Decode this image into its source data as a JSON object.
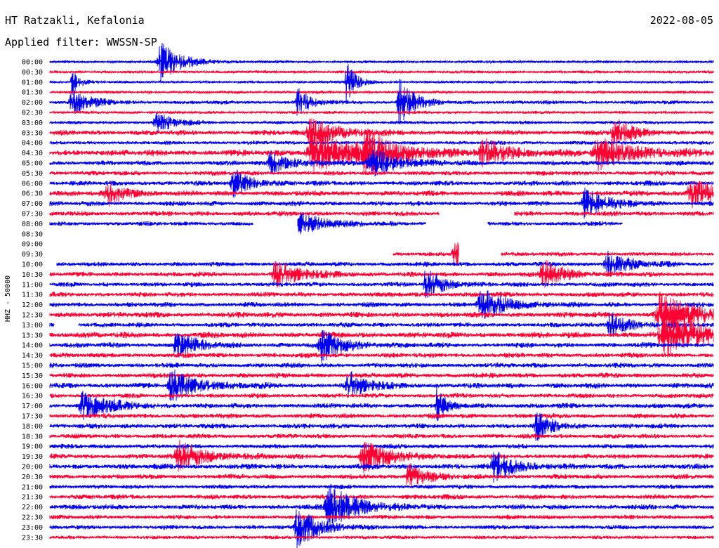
{
  "header": {
    "station": "HT Ratzakli, Kefalonia",
    "date": "2022-08-05",
    "filter": "Applied filter: WWSSN-SP"
  },
  "colors": {
    "even": "#0000ee",
    "odd": "#ff0033"
  },
  "chart_data": {
    "type": "line",
    "subtype": "helicorder",
    "ylabel": "HHZ - 50000",
    "row_labels": [
      "00:00",
      "00:30",
      "01:00",
      "01:30",
      "02:00",
      "02:30",
      "03:00",
      "03:30",
      "04:00",
      "04:30",
      "05:00",
      "05:30",
      "06:00",
      "06:30",
      "07:00",
      "07:30",
      "08:00",
      "08:30",
      "09:00",
      "09:30",
      "10:00",
      "10:30",
      "11:00",
      "11:30",
      "12:00",
      "12:30",
      "13:00",
      "13:30",
      "14:00",
      "14:30",
      "15:00",
      "15:30",
      "16:00",
      "16:30",
      "17:00",
      "17:30",
      "18:00",
      "18:30",
      "19:00",
      "19:30",
      "20:00",
      "20:30",
      "21:00",
      "21:30",
      "22:00",
      "22:30",
      "23:00",
      "23:30"
    ],
    "row_colors": [
      "blue",
      "red",
      "blue",
      "red",
      "blue",
      "red",
      "blue",
      "red",
      "blue",
      "red",
      "blue",
      "red",
      "blue",
      "red",
      "blue",
      "red",
      "blue",
      "red",
      "blue",
      "red",
      "blue",
      "red",
      "blue",
      "red",
      "blue",
      "red",
      "blue",
      "red",
      "blue",
      "red",
      "blue",
      "red",
      "blue",
      "red",
      "blue",
      "red",
      "blue",
      "red",
      "blue",
      "red",
      "blue",
      "red",
      "blue",
      "red",
      "blue",
      "red",
      "blue",
      "red"
    ],
    "row_activity": [
      0.15,
      0.15,
      0.12,
      0.15,
      0.35,
      0.15,
      0.25,
      0.6,
      0.35,
      0.85,
      0.55,
      0.5,
      0.55,
      0.65,
      0.55,
      0.55,
      0.45,
      0.1,
      0.1,
      0.4,
      0.5,
      0.55,
      0.5,
      0.55,
      0.55,
      0.7,
      0.5,
      0.75,
      0.6,
      0.55,
      0.55,
      0.6,
      0.65,
      0.5,
      0.6,
      0.55,
      0.55,
      0.5,
      0.5,
      0.6,
      0.65,
      0.55,
      0.45,
      0.55,
      0.6,
      0.45,
      0.45,
      0.3
    ],
    "gaps": [
      {
        "row": 15,
        "from_min": 17.6,
        "to_min": 21.0
      },
      {
        "row": 16,
        "from_min": 9.2,
        "to_min": 11.2
      },
      {
        "row": 16,
        "from_min": 17.0,
        "to_min": 19.8
      },
      {
        "row": 16,
        "from_min": 25.9,
        "to_min": 30
      },
      {
        "row": 17,
        "from_min": 0,
        "to_min": 30
      },
      {
        "row": 18,
        "from_min": 0,
        "to_min": 30
      },
      {
        "row": 19,
        "from_min": 0,
        "to_min": 15.5
      },
      {
        "row": 19,
        "from_min": 18.5,
        "to_min": 20.4
      },
      {
        "row": 20,
        "from_min": 0,
        "to_min": 0.3
      },
      {
        "row": 26,
        "from_min": 0.2,
        "to_min": 1.3
      }
    ],
    "events": [
      {
        "row": 0,
        "min": 5.0,
        "amp": 28,
        "dur": 1.2
      },
      {
        "row": 2,
        "min": 13.4,
        "amp": 34,
        "dur": 0.5
      },
      {
        "row": 2,
        "min": 1.0,
        "amp": 22,
        "dur": 0.4
      },
      {
        "row": 4,
        "min": 1.0,
        "amp": 18,
        "dur": 1.0
      },
      {
        "row": 4,
        "min": 11.2,
        "amp": 20,
        "dur": 0.7
      },
      {
        "row": 4,
        "min": 15.8,
        "amp": 35,
        "dur": 0.8
      },
      {
        "row": 6,
        "min": 4.8,
        "amp": 18,
        "dur": 0.9
      },
      {
        "row": 7,
        "min": 11.8,
        "amp": 22,
        "dur": 1.5
      },
      {
        "row": 7,
        "min": 25.5,
        "amp": 22,
        "dur": 1.0
      },
      {
        "row": 9,
        "min": 12.0,
        "amp": 26,
        "dur": 3.0
      },
      {
        "row": 9,
        "min": 14.3,
        "amp": 22,
        "dur": 1.5
      },
      {
        "row": 9,
        "min": 19.6,
        "amp": 18,
        "dur": 1.5
      },
      {
        "row": 9,
        "min": 24.8,
        "amp": 22,
        "dur": 2.0
      },
      {
        "row": 10,
        "min": 14.5,
        "amp": 22,
        "dur": 1.5
      },
      {
        "row": 10,
        "min": 10.0,
        "amp": 16,
        "dur": 1.2
      },
      {
        "row": 12,
        "min": 8.3,
        "amp": 20,
        "dur": 1.0
      },
      {
        "row": 13,
        "min": 2.6,
        "amp": 18,
        "dur": 1.0
      },
      {
        "row": 13,
        "min": 29.0,
        "amp": 22,
        "dur": 1.5
      },
      {
        "row": 14,
        "min": 24.2,
        "amp": 22,
        "dur": 1.2
      },
      {
        "row": 16,
        "min": 11.3,
        "amp": 16,
        "dur": 1.5
      },
      {
        "row": 19,
        "min": 18.3,
        "amp": 22,
        "dur": 1.0
      },
      {
        "row": 20,
        "min": 25.2,
        "amp": 18,
        "dur": 1.2
      },
      {
        "row": 21,
        "min": 10.2,
        "amp": 18,
        "dur": 1.5
      },
      {
        "row": 21,
        "min": 22.3,
        "amp": 22,
        "dur": 1.2
      },
      {
        "row": 22,
        "min": 17.0,
        "amp": 22,
        "dur": 1.0
      },
      {
        "row": 24,
        "min": 19.5,
        "amp": 22,
        "dur": 1.5
      },
      {
        "row": 25,
        "min": 27.6,
        "amp": 30,
        "dur": 2.0
      },
      {
        "row": 26,
        "min": 25.3,
        "amp": 20,
        "dur": 1.0
      },
      {
        "row": 27,
        "min": 27.8,
        "amp": 30,
        "dur": 2.5
      },
      {
        "row": 28,
        "min": 5.7,
        "amp": 22,
        "dur": 1.0
      },
      {
        "row": 28,
        "min": 12.3,
        "amp": 22,
        "dur": 1.2
      },
      {
        "row": 32,
        "min": 5.5,
        "amp": 22,
        "dur": 1.5
      },
      {
        "row": 32,
        "min": 13.5,
        "amp": 20,
        "dur": 1.0
      },
      {
        "row": 34,
        "min": 17.5,
        "amp": 26,
        "dur": 0.5
      },
      {
        "row": 34,
        "min": 1.5,
        "amp": 20,
        "dur": 1.5
      },
      {
        "row": 36,
        "min": 22.0,
        "amp": 24,
        "dur": 0.8
      },
      {
        "row": 39,
        "min": 5.8,
        "amp": 22,
        "dur": 1.5
      },
      {
        "row": 39,
        "min": 14.2,
        "amp": 22,
        "dur": 1.5
      },
      {
        "row": 40,
        "min": 20.1,
        "amp": 22,
        "dur": 1.2
      },
      {
        "row": 41,
        "min": 16.2,
        "amp": 20,
        "dur": 1.0
      },
      {
        "row": 44,
        "min": 12.6,
        "amp": 34,
        "dur": 1.5
      },
      {
        "row": 46,
        "min": 11.2,
        "amp": 30,
        "dur": 1.2
      }
    ]
  }
}
